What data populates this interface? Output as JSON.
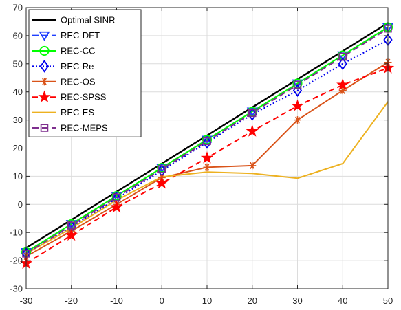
{
  "chart_data": {
    "type": "line",
    "title": "",
    "xlabel": "",
    "ylabel": "",
    "x": [
      -30,
      -20,
      -10,
      0,
      10,
      20,
      30,
      40,
      50
    ],
    "xlim": [
      -30,
      50
    ],
    "ylim": [
      -30,
      70
    ],
    "xticks": [
      -30,
      -20,
      -10,
      0,
      10,
      20,
      30,
      40,
      50
    ],
    "yticks": [
      -30,
      -20,
      -10,
      0,
      10,
      20,
      30,
      40,
      50,
      60,
      70
    ],
    "grid": true,
    "legend_position": "top-left",
    "series": [
      {
        "name": "Optimal SINR",
        "color": "#000000",
        "dash": "",
        "marker": "none",
        "values": [
          -15.5,
          -5.5,
          4.5,
          14.5,
          24.5,
          34.5,
          44.5,
          54.5,
          64.5
        ]
      },
      {
        "name": "REC-DFT",
        "color": "#1f3fff",
        "dash": "9,5",
        "marker": "triangle-down",
        "values": [
          -17,
          -7,
          3,
          13,
          23,
          33,
          43,
          53,
          63
        ]
      },
      {
        "name": "REC-CC",
        "color": "#00ff00",
        "dash": "",
        "marker": "circle",
        "values": [
          -17,
          -7,
          3,
          13,
          23,
          33,
          43,
          53,
          63
        ]
      },
      {
        "name": "REC-Re",
        "color": "#0000ee",
        "dash": "2,3",
        "marker": "diamond",
        "values": [
          -17.5,
          -8,
          2,
          12,
          22,
          32,
          40.5,
          50,
          58.5
        ]
      },
      {
        "name": "REC-OS",
        "color": "#d95319",
        "dash": "",
        "marker": "asterisk",
        "values": [
          -18.5,
          -9.5,
          0,
          9.5,
          13.2,
          13.8,
          30,
          40.5,
          50.5
        ]
      },
      {
        "name": "REC-SPSS",
        "color": "#ff0000",
        "dash": "8,5",
        "marker": "star",
        "values": [
          -21,
          -11,
          -1,
          7.5,
          16.5,
          26,
          35,
          42.5,
          48.5
        ]
      },
      {
        "name": "REC-ES",
        "color": "#edb120",
        "dash": "",
        "marker": "none",
        "values": [
          -17.5,
          -8.5,
          1.5,
          9.8,
          11.5,
          11,
          9.3,
          14.5,
          36.5
        ]
      },
      {
        "name": "REC-MEPS",
        "color": "#7e2f8e",
        "dash": "9,5",
        "marker": "square",
        "values": [
          -17.5,
          -7.5,
          2.5,
          12.5,
          22.5,
          32.5,
          42.5,
          52.5,
          62.5
        ]
      }
    ]
  }
}
